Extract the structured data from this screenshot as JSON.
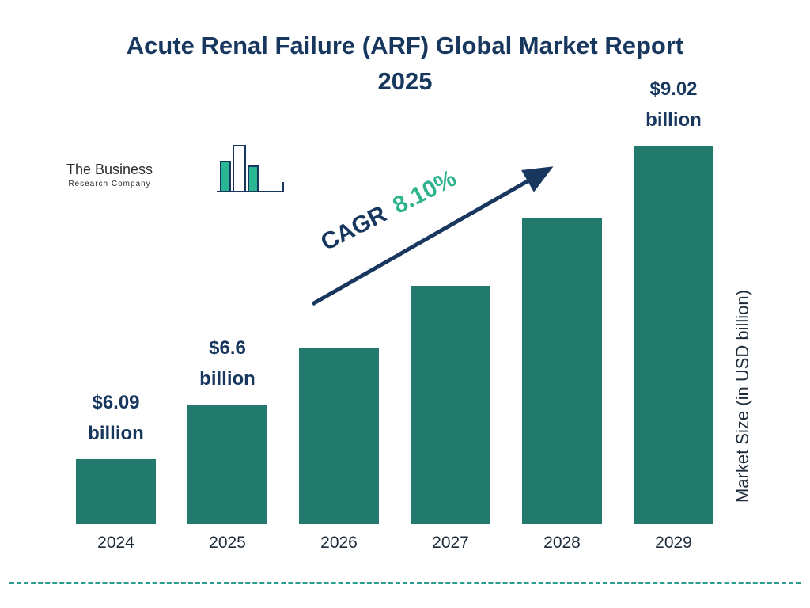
{
  "title": "Acute Renal Failure (ARF) Global Market Report 2025",
  "logo": {
    "line1": "The Business",
    "line2": "Research Company"
  },
  "chart_data": {
    "type": "bar",
    "title": "Acute Renal Failure (ARF) Global Market Report 2025",
    "categories": [
      "2024",
      "2025",
      "2026",
      "2027",
      "2028",
      "2029"
    ],
    "values": [
      6.09,
      6.6,
      7.13,
      7.71,
      8.34,
      9.02
    ],
    "bar_labels": [
      {
        "value": "$6.09",
        "unit": "billion"
      },
      {
        "value": "$6.6",
        "unit": "billion"
      },
      null,
      null,
      null,
      {
        "value": "$9.02",
        "unit": "billion"
      }
    ],
    "xlabel": "",
    "ylabel": "Market Size (in USD billion)",
    "cagr_label": "CAGR",
    "cagr_value": "8.10%",
    "legend": "none",
    "grid": false,
    "bar_color": "#217a6b",
    "accent_navy": "#17375e",
    "accent_green": "#2eb48c",
    "dashed_rule_color": "#2a9d8f"
  }
}
